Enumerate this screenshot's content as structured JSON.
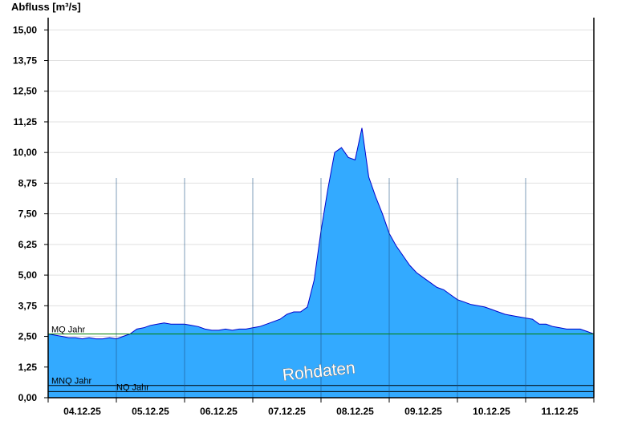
{
  "chart_data": {
    "type": "area",
    "ylabel": "Abfluss [m³/s]",
    "ylim": [
      0,
      15.5
    ],
    "yticks": [
      "0,00",
      "1,25",
      "2,50",
      "3,75",
      "5,00",
      "6,25",
      "7,50",
      "8,75",
      "10,00",
      "11,25",
      "12,50",
      "13,75",
      "15,00"
    ],
    "ytick_values": [
      0,
      1.25,
      2.5,
      3.75,
      5,
      6.25,
      7.5,
      8.75,
      10,
      11.25,
      12.5,
      13.75,
      15
    ],
    "xlim": [
      0,
      8.0
    ],
    "xticks": [
      "04.12.25",
      "05.12.25",
      "06.12.25",
      "07.12.25",
      "08.12.25",
      "09.12.25",
      "10.12.25",
      "11.12.25"
    ],
    "grid": true,
    "watermark": "Rohdaten",
    "colors": {
      "fill": "#33aaff",
      "line": "#0000cc",
      "mq": "#008000",
      "ref": "#000000",
      "grid": "#e0e0e0"
    },
    "reference_lines": [
      {
        "name": "MQ Jahr",
        "value": 2.6
      },
      {
        "name": "MNQ Jahr",
        "value": 0.5
      },
      {
        "name": "NQ Jahr",
        "value": 0.25
      }
    ],
    "series": [
      {
        "x": [
          0.0,
          0.1,
          0.2,
          0.3,
          0.4,
          0.5,
          0.6,
          0.7,
          0.8,
          0.9,
          1.0,
          1.1,
          1.2,
          1.3,
          1.4,
          1.5,
          1.6,
          1.7,
          1.8,
          1.9,
          2.0,
          2.1,
          2.2,
          2.3,
          2.4,
          2.5,
          2.6,
          2.7,
          2.8,
          2.9,
          3.0,
          3.1,
          3.2,
          3.3,
          3.4,
          3.5,
          3.6,
          3.7,
          3.8,
          3.9,
          4.0,
          4.1,
          4.2,
          4.3,
          4.4,
          4.5,
          4.6,
          4.7,
          4.8,
          4.9,
          5.0,
          5.1,
          5.2,
          5.3,
          5.4,
          5.5,
          5.6,
          5.7,
          5.8,
          5.9,
          6.0,
          6.1,
          6.2,
          6.3,
          6.4,
          6.5,
          6.6,
          6.7,
          6.8,
          6.9,
          7.0,
          7.1,
          7.2,
          7.3,
          7.4,
          7.5,
          7.6,
          7.7,
          7.8,
          7.9,
          8.0
        ],
        "values": [
          2.6,
          2.55,
          2.5,
          2.45,
          2.45,
          2.4,
          2.45,
          2.4,
          2.4,
          2.45,
          2.4,
          2.5,
          2.6,
          2.8,
          2.85,
          2.95,
          3.0,
          3.05,
          3.0,
          3.0,
          3.0,
          2.95,
          2.9,
          2.8,
          2.75,
          2.75,
          2.8,
          2.75,
          2.8,
          2.8,
          2.85,
          2.9,
          3.0,
          3.1,
          3.2,
          3.4,
          3.5,
          3.5,
          3.7,
          4.8,
          6.8,
          8.5,
          10.0,
          10.2,
          9.8,
          9.7,
          11.0,
          9.0,
          8.2,
          7.5,
          6.7,
          6.2,
          5.8,
          5.4,
          5.1,
          4.9,
          4.7,
          4.5,
          4.4,
          4.2,
          4.0,
          3.9,
          3.8,
          3.75,
          3.7,
          3.6,
          3.5,
          3.4,
          3.35,
          3.3,
          3.25,
          3.2,
          3.0,
          3.0,
          2.9,
          2.85,
          2.8,
          2.8,
          2.8,
          2.7,
          2.6
        ]
      }
    ]
  }
}
